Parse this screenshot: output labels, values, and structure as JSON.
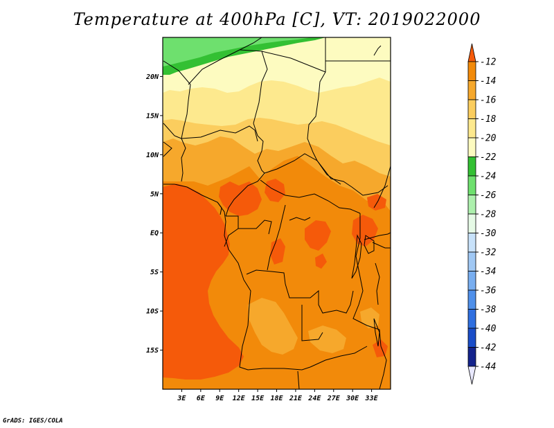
{
  "title": "Temperature at 400hPa [C], VT: 2019022000",
  "credit": "GrADS: IGES/COLA",
  "map": {
    "lon_range": [
      0,
      36
    ],
    "lat_range": [
      -20,
      25
    ],
    "lat_ticks": [
      {
        "v": 20,
        "label": "20N"
      },
      {
        "v": 15,
        "label": "15N"
      },
      {
        "v": 10,
        "label": "10N"
      },
      {
        "v": 5,
        "label": "5N"
      },
      {
        "v": 0,
        "label": "EQ"
      },
      {
        "v": -5,
        "label": "5S"
      },
      {
        "v": -10,
        "label": "10S"
      },
      {
        "v": -15,
        "label": "15S"
      }
    ],
    "lon_ticks": [
      {
        "v": 3,
        "label": "3E"
      },
      {
        "v": 6,
        "label": "6E"
      },
      {
        "v": 9,
        "label": "9E"
      },
      {
        "v": 12,
        "label": "12E"
      },
      {
        "v": 15,
        "label": "15E"
      },
      {
        "v": 18,
        "label": "18E"
      },
      {
        "v": 21,
        "label": "21E"
      },
      {
        "v": 24,
        "label": "24E"
      },
      {
        "v": 27,
        "label": "27E"
      },
      {
        "v": 30,
        "label": "30E"
      },
      {
        "v": 33,
        "label": "33E"
      }
    ]
  },
  "colorbar": {
    "levels": [
      "-12",
      "-14",
      "-16",
      "-18",
      "-20",
      "-22",
      "-24",
      "-26",
      "-28",
      "-30",
      "-32",
      "-34",
      "-36",
      "-38",
      "-40",
      "-42",
      "-44"
    ],
    "colors": [
      "#f55a0a",
      "#f28a0a",
      "#f6a82c",
      "#fbcd5e",
      "#fde98e",
      "#fdfbc0",
      "#33c033",
      "#6ee06e",
      "#adf0ad",
      "#e6fae6",
      "#c8e2fa",
      "#a0c8f4",
      "#78aef0",
      "#4f90ea",
      "#2f6fe0",
      "#1a4dc8",
      "#14238c",
      "#0b0b5a"
    ]
  }
}
